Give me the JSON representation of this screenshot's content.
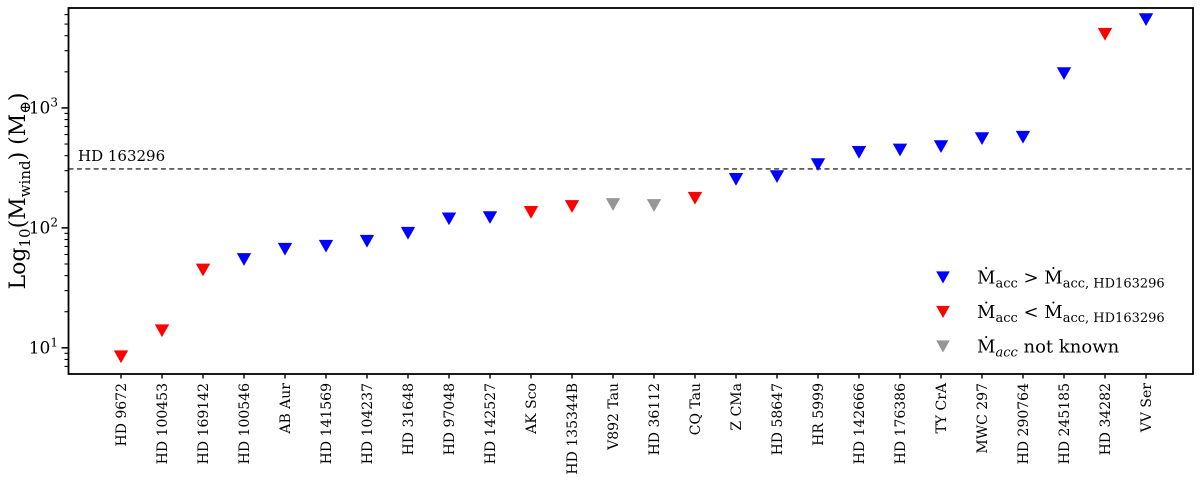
{
  "chart_data": {
    "type": "scatter",
    "marker": "triangle-down",
    "yscale": "log",
    "ylim": [
      6.05,
      6810
    ],
    "yticks_exponents": [
      1,
      2,
      3
    ],
    "ylabel_text": "Log10(Mwind) (M⊕)",
    "ylabel_segments": [
      {
        "t": "Log"
      },
      {
        "t": "10",
        "sub": true
      },
      {
        "t": "(M"
      },
      {
        "t": "wind",
        "sub": true
      },
      {
        "t": ") (M"
      },
      {
        "t": "⊕",
        "sub": true
      },
      {
        "t": ")"
      }
    ],
    "xlabel": "",
    "grid": false,
    "categories": [
      "HD 9672",
      "HD 100453",
      "HD 169142",
      "HD 100546",
      "AB Aur",
      "HD 141569",
      "HD 104237",
      "HD 31648",
      "HD 97048",
      "HD 142527",
      "AK Sco",
      "HD 135344B",
      "V892 Tau",
      "HD 36112",
      "CQ Tau",
      "Z CMa",
      "HD 58647",
      "HR 5999",
      "HD 142666",
      "HD 176386",
      "TY CrA",
      "MWC 297",
      "HD 290764",
      "HD 245185",
      "HD 34282",
      "VV Ser"
    ],
    "values": [
      8.5,
      14,
      45,
      55,
      67,
      71,
      78,
      91,
      120,
      123,
      136,
      152,
      158,
      155,
      178,
      256,
      270,
      340,
      430,
      450,
      480,
      560,
      575,
      1950,
      4150,
      5500
    ],
    "point_groups": [
      "below",
      "below",
      "below",
      "above",
      "above",
      "above",
      "above",
      "above",
      "above",
      "above",
      "below",
      "below",
      "unknown",
      "unknown",
      "below",
      "above",
      "above",
      "above",
      "above",
      "above",
      "above",
      "above",
      "above",
      "above",
      "below",
      "above"
    ],
    "groups": {
      "above": {
        "color": "#0000FF"
      },
      "below": {
        "color": "#FF0000"
      },
      "unknown": {
        "color": "#969696"
      }
    },
    "reference_line": {
      "value": 310,
      "label": "HD 163296",
      "style": "dashed",
      "color": "#000000"
    },
    "legend_position": "lower right",
    "legend": [
      {
        "group": "above",
        "color": "#0000FF",
        "text_plain": "Macc > Macc, HD163296",
        "segments": [
          {
            "t": "Ṁ"
          },
          {
            "t": "acc",
            "sub": true
          },
          {
            "t": " > Ṁ"
          },
          {
            "t": "acc, HD163296",
            "sub": true
          }
        ]
      },
      {
        "group": "below",
        "color": "#FF0000",
        "text_plain": "Macc < Macc, HD163296",
        "segments": [
          {
            "t": "Ṁ"
          },
          {
            "t": "acc",
            "sub": true
          },
          {
            "t": " < Ṁ"
          },
          {
            "t": "acc, HD163296",
            "sub": true
          }
        ]
      },
      {
        "group": "unknown",
        "color": "#969696",
        "text_plain": "Macc not known",
        "segments": [
          {
            "t": "Ṁ"
          },
          {
            "t": "acc",
            "sub": true,
            "italic": true
          },
          {
            "t": " not known"
          }
        ]
      }
    ],
    "frame_color": "#000000",
    "background_color": "#ffffff"
  }
}
